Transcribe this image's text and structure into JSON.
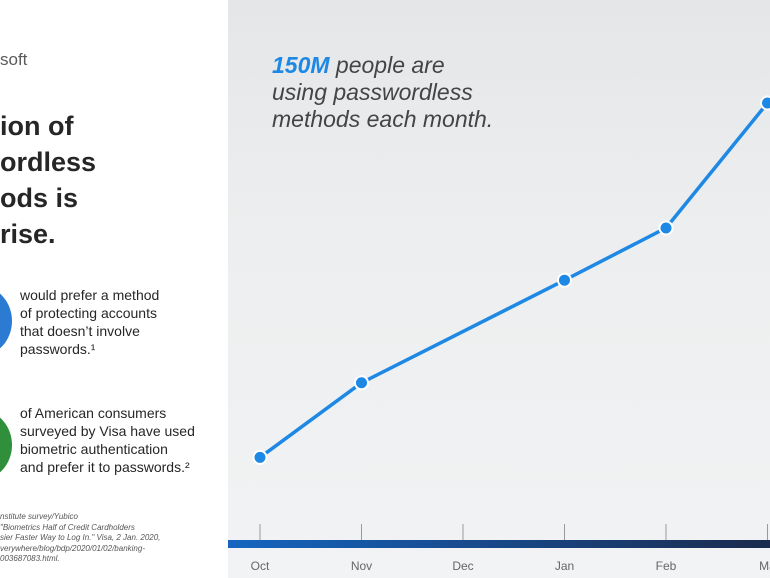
{
  "brand": "soft",
  "headline": "ion of\nordless\nods is\n rise.",
  "stats": [
    {
      "text": "would prefer a method\nof protecting accounts\nthat doesn’t involve\npasswords.¹",
      "color": "#2a7bd1"
    },
    {
      "text": "of American consumers\nsurveyed by Visa have used\nbiometric authentication\nand prefer it to passwords.²",
      "color": "#2f8f3a"
    }
  ],
  "footnotes": "nstitute survey/Yubico\n\"Biometrics Half of Credit Cardholders\nsier Faster Way to Log In.\" Visa, 2 Jan. 2020,\nverywhere/blog/bdp/2020/01/02/banking-\n003687083.html.",
  "callout": {
    "highlight": "150M",
    "rest": " people are\nusing passwordless\nmethods each month."
  },
  "chart_data": {
    "type": "line",
    "categories": [
      "Oct",
      "Nov",
      "Dec",
      "Jan",
      "Feb",
      "Ma"
    ],
    "series": [
      {
        "x": [
          "Oct",
          "Nov",
          "Jan",
          "Feb",
          "Ma"
        ],
        "values": [
          55,
          95,
          150,
          178,
          245
        ]
      }
    ],
    "ylim": [
      0,
      260
    ],
    "grid": false,
    "line_color": "#1e88e5",
    "axis_bar_colors": [
      "#1565c0",
      "#1b2a4e"
    ]
  }
}
